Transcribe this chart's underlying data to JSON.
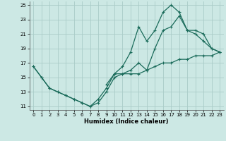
{
  "xlabel": "Humidex (Indice chaleur)",
  "background_color": "#cce8e4",
  "grid_color": "#aaccc8",
  "line_color": "#1a6b5a",
  "xlim": [
    -0.5,
    23.5
  ],
  "ylim": [
    10.5,
    25.5
  ],
  "yticks": [
    11,
    13,
    15,
    17,
    19,
    21,
    23,
    25
  ],
  "xticks": [
    0,
    1,
    2,
    3,
    4,
    5,
    6,
    7,
    8,
    9,
    10,
    11,
    12,
    13,
    14,
    15,
    16,
    17,
    18,
    19,
    20,
    21,
    22,
    23
  ],
  "line1_x": [
    0,
    1,
    2,
    3,
    4,
    5,
    6,
    7,
    8,
    9,
    10,
    11,
    12,
    13,
    14,
    15,
    16,
    17,
    18,
    19,
    20,
    21,
    22,
    23
  ],
  "line1_y": [
    16.5,
    15,
    13.5,
    13,
    12.5,
    12,
    11.5,
    11,
    11.5,
    13,
    15,
    15.5,
    15.5,
    15.5,
    16,
    16.5,
    17,
    17,
    17.5,
    17.5,
    18,
    18,
    18,
    18.5
  ],
  "line2_x": [
    0,
    1,
    2,
    3,
    4,
    5,
    6,
    7,
    8,
    9,
    10,
    11,
    12,
    13,
    14,
    15,
    16,
    17,
    18,
    19,
    20,
    21,
    22,
    23
  ],
  "line2_y": [
    16.5,
    15,
    13.5,
    13,
    12.5,
    12,
    11.5,
    11,
    12,
    13.5,
    15.5,
    16.5,
    18.5,
    22,
    20,
    21.5,
    24,
    25,
    24,
    21.5,
    21,
    20,
    19,
    18.5
  ],
  "line3_x": [
    9,
    10,
    11,
    12,
    13,
    14,
    15,
    16,
    17,
    18,
    19,
    20,
    21,
    22,
    23
  ],
  "line3_y": [
    14,
    15.5,
    15.5,
    16,
    17,
    16,
    19,
    21.5,
    22,
    23.5,
    21.5,
    21.5,
    21,
    19,
    18.5
  ]
}
